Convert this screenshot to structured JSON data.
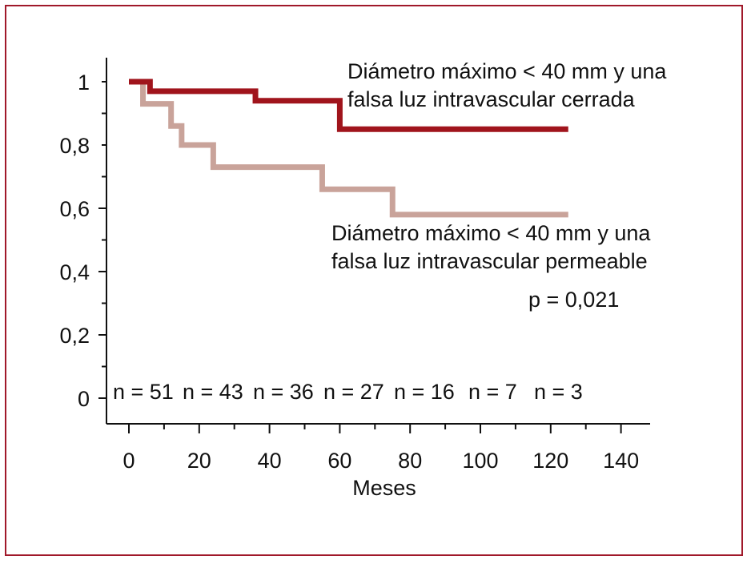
{
  "chart_data": {
    "type": "line",
    "xlabel": "Meses",
    "ylabel": "",
    "xlim": [
      0,
      140
    ],
    "ylim": [
      0,
      1
    ],
    "x_ticks": [
      0,
      20,
      40,
      60,
      80,
      100,
      120,
      140
    ],
    "y_ticks": [
      0,
      0.2,
      0.4,
      0.6,
      0.8,
      1
    ],
    "x_tick_labels": [
      "0",
      "20",
      "40",
      "60",
      "80",
      "100",
      "120",
      "140"
    ],
    "y_tick_labels": [
      "0",
      "0,2",
      "0,4",
      "0,6",
      "0,8",
      "1"
    ],
    "series": [
      {
        "label_lines": [
          "Diámetro máximo < 40 mm y una",
          "falsa luz intravascular cerrada"
        ],
        "color": "#a0141c",
        "steps": [
          [
            0,
            1.0
          ],
          [
            6,
            0.97
          ],
          [
            36,
            0.94
          ],
          [
            60,
            0.85
          ],
          [
            125,
            0.85
          ]
        ]
      },
      {
        "label_lines": [
          "Diámetro máximo < 40 mm y una",
          "falsa luz intravascular permeable"
        ],
        "color": "#c9a39a",
        "steps": [
          [
            0,
            1.0
          ],
          [
            4,
            0.93
          ],
          [
            12,
            0.86
          ],
          [
            15,
            0.8
          ],
          [
            24,
            0.73
          ],
          [
            55,
            0.66
          ],
          [
            75,
            0.58
          ],
          [
            125,
            0.58
          ]
        ]
      }
    ],
    "p_value": "p = 0,021",
    "numbers_at_risk": [
      "n = 51",
      "n = 43",
      "n = 36",
      "n = 27",
      "n = 16",
      "n = 7",
      "n = 3"
    ],
    "grid": false
  }
}
